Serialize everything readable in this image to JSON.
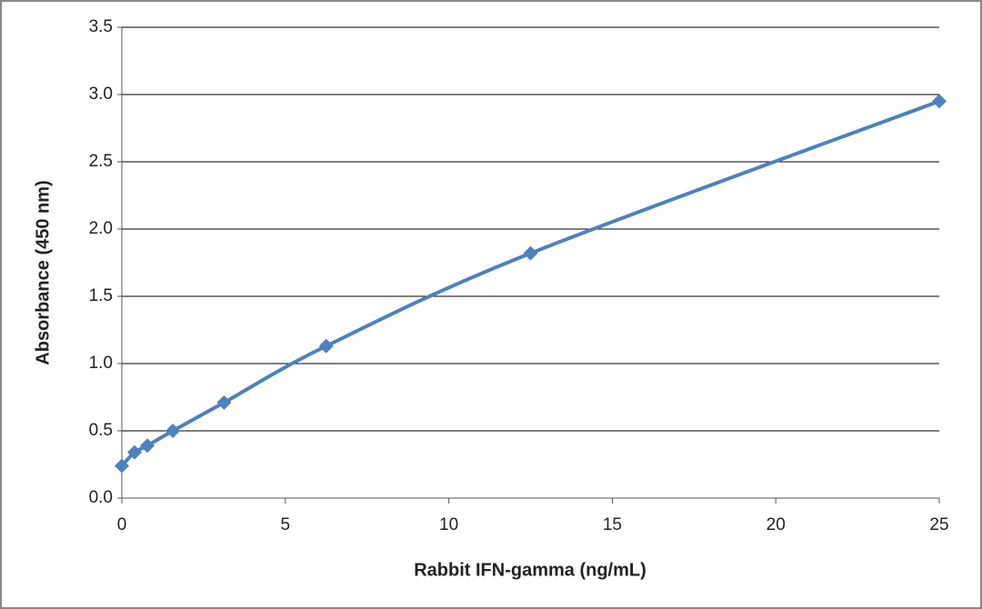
{
  "chart_data": {
    "type": "line",
    "x_label": "Rabbit IFN-gamma (ng/mL)",
    "y_label": "Absorbance  (450  nm)",
    "x": [
      0,
      0.39,
      0.78,
      1.56,
      3.125,
      6.25,
      12.5,
      25
    ],
    "series": [
      {
        "color": "#4f81bd",
        "values": [
          0.24,
          0.34,
          0.39,
          0.5,
          0.71,
          1.13,
          1.82,
          2.95
        ]
      }
    ],
    "xlim": [
      0,
      25
    ],
    "xticks": [
      0,
      5,
      10,
      15,
      20,
      25
    ],
    "ylim": [
      0,
      3.5
    ],
    "yticks": [
      {
        "value": 0,
        "label": "0.0"
      },
      0.5,
      {
        "value": 1,
        "label": "1.0"
      },
      1.5,
      {
        "value": 2,
        "label": "2.0"
      },
      2.5,
      {
        "value": 3,
        "label": "3.0"
      },
      3.5
    ],
    "grid": true
  }
}
